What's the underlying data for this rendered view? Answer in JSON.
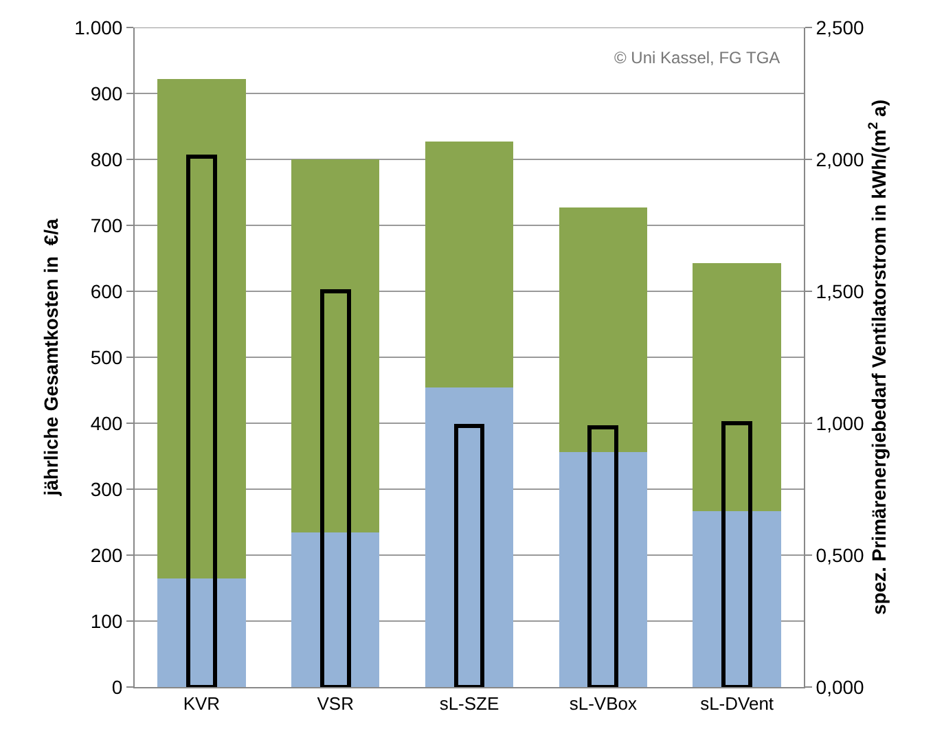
{
  "chart_data": {
    "type": "bar",
    "stacked": true,
    "ylabel": "jährliche Gesamtkosten in  €/a",
    "y2label": "spez. Primärenergiebedarf Ventilatorstrom in kWh/(m$^{2}$ a)",
    "categories": [
      "KVR",
      "VSR",
      "sL-SZE",
      "sL-VBox",
      "sL-DVent"
    ],
    "series": [
      {
        "color": "#95b3d7",
        "values": [
          165,
          234,
          454,
          356,
          267
        ]
      },
      {
        "color": "#8aa64f",
        "values": [
          757,
          566,
          373,
          371,
          376
        ]
      },
      {
        "color": "#000000",
        "axis": "y2",
        "values": [
          2.01,
          1.5,
          0.99,
          0.985,
          1.0
        ]
      }
    ],
    "ylim": [
      0,
      1000
    ],
    "yticks": [
      0,
      100,
      200,
      300,
      400,
      500,
      600,
      700,
      800,
      900,
      {
        "value": 1000,
        "label": "1.000"
      }
    ],
    "y2lim": [
      0,
      2.5
    ],
    "y2ticks": [
      {
        "value": 0,
        "label": "0,000"
      },
      {
        "value": 0.5,
        "label": "0,500"
      },
      {
        "value": 1,
        "label": "1,000"
      },
      {
        "value": 1.5,
        "label": "1,500"
      },
      {
        "value": 2,
        "label": "2,000"
      },
      {
        "value": 2.5,
        "label": "2,500"
      }
    ],
    "grid": "y",
    "annotations": [
      "© Uni Kassel, FG TGA"
    ]
  }
}
